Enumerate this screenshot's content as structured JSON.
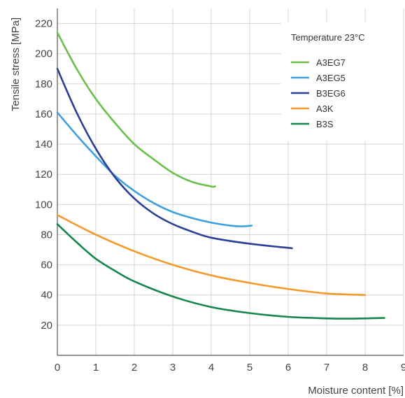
{
  "chart_data": {
    "type": "line",
    "title": "",
    "xlabel": "Moisture content [%]",
    "ylabel": "Tensile stress [MPa]",
    "xlim": [
      0,
      9
    ],
    "ylim": [
      0,
      230
    ],
    "x_ticks": [
      "0",
      "1",
      "2",
      "3",
      "4",
      "5",
      "6",
      "7",
      "8",
      "9"
    ],
    "y_ticks": [
      "20",
      "40",
      "60",
      "80",
      "100",
      "120",
      "140",
      "160",
      "180",
      "200",
      "220"
    ],
    "grid": true,
    "legend": {
      "title": "Temperature 23°C",
      "placement": "top-right"
    },
    "series": [
      {
        "name": "A3EG7",
        "color": "#6abf4b",
        "points": [
          [
            0,
            214
          ],
          [
            0.5,
            190
          ],
          [
            1,
            170
          ],
          [
            1.5,
            154
          ],
          [
            2,
            140
          ],
          [
            2.5,
            130
          ],
          [
            3,
            121
          ],
          [
            3.5,
            115
          ],
          [
            4,
            112
          ],
          [
            4.1,
            112
          ]
        ]
      },
      {
        "name": "A3EG5",
        "color": "#3fa0dc",
        "points": [
          [
            0,
            161
          ],
          [
            0.5,
            146
          ],
          [
            1,
            132
          ],
          [
            1.5,
            119
          ],
          [
            2,
            109
          ],
          [
            2.5,
            101
          ],
          [
            3,
            95
          ],
          [
            3.5,
            91
          ],
          [
            4,
            88
          ],
          [
            4.5,
            86
          ],
          [
            4.8,
            85.5
          ],
          [
            5.05,
            86
          ]
        ]
      },
      {
        "name": "B3EG6",
        "color": "#2a3f96",
        "points": [
          [
            0,
            190
          ],
          [
            0.5,
            161
          ],
          [
            1,
            137
          ],
          [
            1.5,
            118
          ],
          [
            2,
            104
          ],
          [
            2.5,
            94
          ],
          [
            3,
            87
          ],
          [
            3.5,
            82
          ],
          [
            4,
            78
          ],
          [
            5,
            74
          ],
          [
            6.1,
            71
          ]
        ]
      },
      {
        "name": "A3K",
        "color": "#f39a2b",
        "points": [
          [
            0,
            93
          ],
          [
            1,
            80
          ],
          [
            2,
            69
          ],
          [
            3,
            60
          ],
          [
            4,
            53
          ],
          [
            5,
            48
          ],
          [
            6,
            44
          ],
          [
            7,
            41
          ],
          [
            8,
            40
          ]
        ]
      },
      {
        "name": "B3S",
        "color": "#13864a",
        "points": [
          [
            0,
            87
          ],
          [
            0.5,
            75
          ],
          [
            1,
            64
          ],
          [
            1.5,
            56
          ],
          [
            2,
            49
          ],
          [
            3,
            39
          ],
          [
            4,
            32
          ],
          [
            5,
            28
          ],
          [
            6,
            25.5
          ],
          [
            7,
            24.5
          ],
          [
            7.5,
            24.3
          ],
          [
            8,
            24.5
          ],
          [
            8.5,
            24.8
          ]
        ]
      }
    ]
  }
}
